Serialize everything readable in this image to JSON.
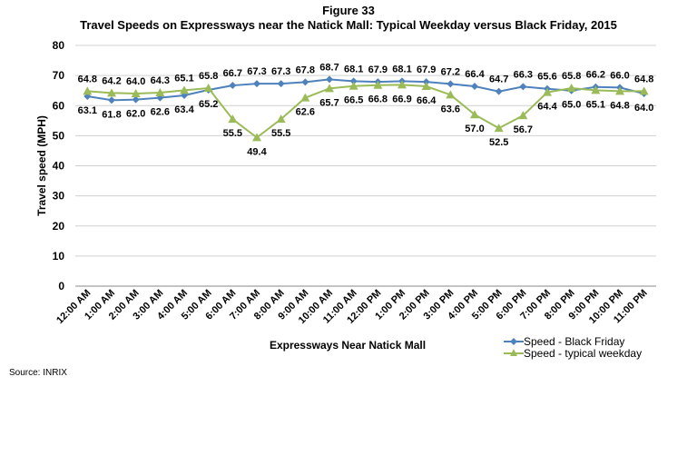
{
  "chart_data": {
    "type": "line",
    "title_line1": "Figure 33",
    "title": "Travel Speeds on Expressways near the Natick Mall: Typical Weekday versus Black Friday, 2015",
    "xlabel": "Expressways Near Natick Mall",
    "ylabel": "Travel speed (MPH)",
    "ylim": [
      0,
      80
    ],
    "yticks": [
      0,
      10,
      20,
      30,
      40,
      50,
      60,
      70,
      80
    ],
    "grid": true,
    "legend_position": "bottom-right",
    "categories": [
      "12:00 AM",
      "1:00 AM",
      "2:00 AM",
      "3:00 AM",
      "4:00 AM",
      "5:00 AM",
      "6:00 AM",
      "7:00 AM",
      "8:00 AM",
      "9:00 AM",
      "10:00 AM",
      "11:00 AM",
      "12:00 PM",
      "1:00 PM",
      "2:00 PM",
      "3:00 PM",
      "4:00 PM",
      "5:00 PM",
      "6:00 PM",
      "7:00 PM",
      "8:00 PM",
      "9:00 PM",
      "10:00 PM",
      "11:00 PM"
    ],
    "series": [
      {
        "name": "Speed - Black Friday",
        "color": "#4F81BD",
        "marker": "diamond",
        "values": [
          63.1,
          61.8,
          62.0,
          62.6,
          63.4,
          65.2,
          66.7,
          67.3,
          67.3,
          67.8,
          68.7,
          68.1,
          67.9,
          68.1,
          67.9,
          67.2,
          66.4,
          64.7,
          66.3,
          65.6,
          65.0,
          66.2,
          66.0,
          64.0
        ]
      },
      {
        "name": "Speed - typical weekday",
        "color": "#9BBB59",
        "marker": "triangle",
        "values": [
          64.8,
          64.2,
          64.0,
          64.3,
          65.1,
          65.8,
          55.5,
          49.4,
          55.5,
          62.6,
          65.7,
          66.5,
          66.8,
          66.9,
          66.4,
          63.6,
          57.0,
          52.5,
          56.7,
          64.4,
          65.8,
          65.1,
          64.8,
          64.8
        ]
      }
    ]
  },
  "source": "Source: INRIX"
}
